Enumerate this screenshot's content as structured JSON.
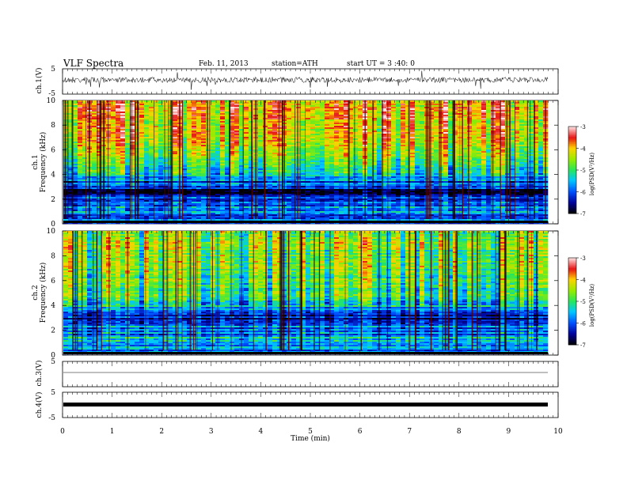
{
  "header": {
    "title": "VLF  Spectra",
    "date": "Feb. 11, 2013",
    "station": "station=ATH",
    "start": "start  UT  =   3  :40: 0"
  },
  "chart_data": [
    {
      "type": "line",
      "panel": "ch1-waveform",
      "ylabel": "ch.1(V)",
      "ylim": [
        -5,
        5
      ],
      "yticks": [
        "5",
        "-5"
      ],
      "xlim": [
        0,
        10
      ],
      "note": "noisy waveform centered near 0 V with occasional spikes"
    },
    {
      "type": "heatmap",
      "panel": "ch1-spectrogram",
      "ylabel_top": "ch.1",
      "ylabel": "Frequency  (kHz)",
      "ylim": [
        0,
        10
      ],
      "yticks": [
        "0",
        "2",
        "4",
        "6",
        "8",
        "10"
      ],
      "xlim": [
        0,
        9.8
      ],
      "colorbar": {
        "label": "log(PSD(V²/Hz)",
        "range": [
          -7,
          -3
        ],
        "ticks": [
          "-3",
          "-4",
          "-5",
          "-6",
          "-7"
        ]
      },
      "frequency_profile_log_psd": [
        {
          "f_khz": 0.5,
          "value": -6.0
        },
        {
          "f_khz": 1.5,
          "value": -5.8
        },
        {
          "f_khz": 2.5,
          "value": -6.5
        },
        {
          "f_khz": 3.2,
          "value": -6.2
        },
        {
          "f_khz": 4.0,
          "value": -5.2
        },
        {
          "f_khz": 5.0,
          "value": -4.8
        },
        {
          "f_khz": 6.0,
          "value": -4.5
        },
        {
          "f_khz": 7.0,
          "value": -4.2
        },
        {
          "f_khz": 8.0,
          "value": -4.0
        },
        {
          "f_khz": 9.0,
          "value": -3.9
        },
        {
          "f_khz": 10.0,
          "value": -4.0
        }
      ]
    },
    {
      "type": "heatmap",
      "panel": "ch2-spectrogram",
      "ylabel_top": "ch.2",
      "ylabel": "Frequency  (kHz)",
      "ylim": [
        0,
        10
      ],
      "yticks": [
        "0",
        "2",
        "4",
        "6",
        "8",
        "10"
      ],
      "xlim": [
        0,
        9.8
      ],
      "colorbar": {
        "label": "log(PSD(V²/Hz)",
        "range": [
          -7,
          -3
        ],
        "ticks": [
          "-3",
          "-4",
          "-5",
          "-6",
          "-7"
        ]
      },
      "frequency_profile_log_psd": [
        {
          "f_khz": 0.5,
          "value": -6.0
        },
        {
          "f_khz": 1.5,
          "value": -5.6
        },
        {
          "f_khz": 2.5,
          "value": -6.0
        },
        {
          "f_khz": 3.2,
          "value": -6.4
        },
        {
          "f_khz": 4.0,
          "value": -5.4
        },
        {
          "f_khz": 5.0,
          "value": -5.0
        },
        {
          "f_khz": 6.0,
          "value": -4.9
        },
        {
          "f_khz": 7.0,
          "value": -4.8
        },
        {
          "f_khz": 8.0,
          "value": -4.7
        },
        {
          "f_khz": 9.0,
          "value": -4.6
        },
        {
          "f_khz": 10.0,
          "value": -4.8
        }
      ]
    },
    {
      "type": "line",
      "panel": "ch3-waveform",
      "ylabel": "ch.3(V)",
      "ylim": [
        -5,
        5
      ],
      "yticks": [
        "5"
      ],
      "xlim": [
        0,
        10
      ],
      "note": "flat trace near 0 V"
    },
    {
      "type": "line",
      "panel": "ch4-waveform",
      "ylabel": "ch.4(V)",
      "ylim": [
        -5,
        5
      ],
      "yticks": [
        "5",
        "-5"
      ],
      "xlim": [
        0,
        10
      ],
      "note": "thick constant band near 0 V"
    }
  ],
  "xaxis": {
    "label": "Time  (min)",
    "ticks": [
      "0",
      "1",
      "2",
      "3",
      "4",
      "5",
      "6",
      "7",
      "8",
      "9",
      "10"
    ]
  }
}
